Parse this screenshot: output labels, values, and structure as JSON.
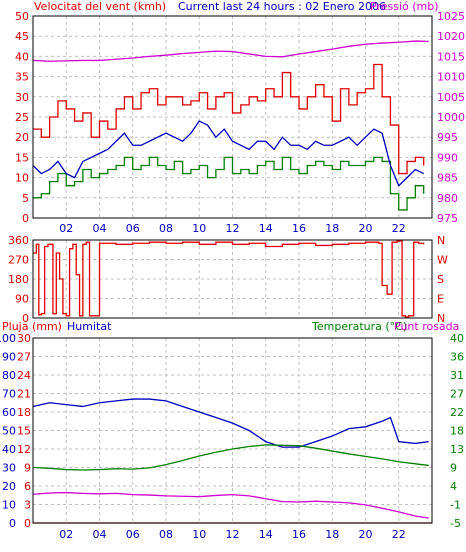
{
  "header": {
    "left_title": "Velocitat del vent (kmh)",
    "center_title": "Current last 24 hours : 02 Enero 2006",
    "right_title": "Pressió (mb)"
  },
  "bottom_header": {
    "left_label_1": "Pluja (mm)",
    "left_label_2": "Humitat",
    "right_label_1": "Temperatura (°C)",
    "right_label_2": "Punt rosada"
  },
  "colors": {
    "wind_gust": "#e00000",
    "wind_avg": "#008000",
    "wind_10min": "#0000c0",
    "pressure": "#d000d0",
    "direction": "#e00000",
    "rain": "#e00000",
    "humidity": "#0000c0",
    "temperature": "#008000",
    "dewpoint": "#d000d0",
    "grid": "#c0c0c0"
  },
  "chart_data": [
    {
      "type": "line",
      "id": "wind_pressure",
      "title": "Current last 24 hours : 02 Enero 2006",
      "x_tick_labels": [
        "02",
        "04",
        "06",
        "08",
        "10",
        "12",
        "14",
        "16",
        "18",
        "20",
        "22"
      ],
      "x_tick_hours": [
        2,
        4,
        6,
        8,
        10,
        12,
        14,
        16,
        18,
        20,
        22
      ],
      "xlim": [
        0,
        24
      ],
      "y_left": {
        "label": "Velocitat del vent (kmh)",
        "lim": [
          0,
          50
        ],
        "ticks": [
          0,
          5,
          10,
          15,
          20,
          25,
          30,
          35,
          40,
          45,
          50
        ]
      },
      "y_right": {
        "label": "Pressió (mb)",
        "lim": [
          975,
          1025
        ],
        "ticks": [
          975,
          980,
          985,
          990,
          995,
          1000,
          1005,
          1010,
          1015,
          1020,
          1025
        ]
      },
      "grid": true,
      "series": [
        {
          "axis": "left",
          "x": [
            0,
            0.5,
            1,
            1.5,
            2,
            2.5,
            3,
            3.5,
            4,
            4.5,
            5,
            5.5,
            6,
            6.5,
            7,
            7.5,
            8,
            8.5,
            9,
            9.5,
            10,
            10.5,
            11,
            11.5,
            12,
            12.5,
            13,
            13.5,
            14,
            14.5,
            15,
            15.5,
            16,
            16.5,
            17,
            17.5,
            18,
            18.5,
            19,
            19.5,
            20,
            20.5,
            21,
            21.5,
            22,
            22.5,
            23,
            23.5
          ],
          "values": [
            22,
            20,
            25,
            29,
            27,
            24,
            26,
            20,
            24,
            22,
            27,
            30,
            27,
            31,
            32,
            28,
            30,
            30,
            28,
            29,
            31,
            27,
            30,
            31,
            26,
            28,
            30,
            29,
            32,
            30,
            36,
            30,
            27,
            30,
            33,
            30,
            24,
            32,
            28,
            31,
            32,
            38,
            30,
            23,
            11,
            14,
            15,
            13
          ]
        },
        {
          "axis": "left",
          "x": [
            0,
            0.5,
            1,
            1.5,
            2,
            2.5,
            3,
            3.5,
            4,
            4.5,
            5,
            5.5,
            6,
            6.5,
            7,
            7.5,
            8,
            8.5,
            9,
            9.5,
            10,
            10.5,
            11,
            11.5,
            12,
            12.5,
            13,
            13.5,
            14,
            14.5,
            15,
            15.5,
            16,
            16.5,
            17,
            17.5,
            18,
            18.5,
            19,
            19.5,
            20,
            20.5,
            21,
            21.5,
            22,
            22.5,
            23,
            23.5
          ],
          "values": [
            5,
            6,
            9,
            11,
            8,
            9,
            12,
            10,
            11,
            12,
            13,
            15,
            12,
            13,
            15,
            13,
            12,
            14,
            11,
            12,
            13,
            10,
            12,
            15,
            11,
            12,
            11,
            13,
            14,
            12,
            15,
            12,
            11,
            13,
            14,
            13,
            12,
            14,
            13,
            13,
            14,
            15,
            14,
            6,
            2,
            5,
            8,
            6
          ]
        },
        {
          "axis": "left",
          "x": [
            0,
            0.5,
            1,
            1.5,
            2,
            2.5,
            3,
            3.5,
            4,
            4.5,
            5,
            5.5,
            6,
            6.5,
            7,
            7.5,
            8,
            8.5,
            9,
            9.5,
            10,
            10.5,
            11,
            11.5,
            12,
            12.5,
            13,
            13.5,
            14,
            14.5,
            15,
            15.5,
            16,
            16.5,
            17,
            17.5,
            18,
            18.5,
            19,
            19.5,
            20,
            20.5,
            21,
            21.5,
            22,
            22.5,
            23,
            23.5
          ],
          "values": [
            13,
            11,
            12,
            14,
            11,
            10,
            14,
            15,
            16,
            17,
            19,
            21,
            18,
            18,
            19,
            20,
            21,
            20,
            19,
            21,
            24,
            23,
            20,
            22,
            19,
            18,
            17,
            19,
            19,
            17,
            20,
            18,
            18,
            17,
            19,
            18,
            18,
            19,
            20,
            18,
            20,
            22,
            21,
            13,
            8,
            10,
            12,
            11
          ]
        },
        {
          "axis": "right",
          "x": [
            0,
            1,
            2,
            3,
            4,
            5,
            6,
            7,
            8,
            9,
            10,
            11,
            12,
            13,
            14,
            15,
            16,
            17,
            18,
            19,
            20,
            21,
            22,
            23,
            23.8
          ],
          "values": [
            1014,
            1013.8,
            1013.9,
            1014,
            1014,
            1014.3,
            1014.6,
            1015,
            1015.3,
            1015.7,
            1016,
            1016.3,
            1016.2,
            1015.6,
            1015,
            1014.9,
            1015.6,
            1016.2,
            1016.8,
            1017.5,
            1018,
            1018.3,
            1018.5,
            1018.8,
            1018.7
          ]
        }
      ]
    },
    {
      "type": "line",
      "id": "wind_direction",
      "x_tick_labels": [],
      "xlim": [
        0,
        24
      ],
      "y_left": {
        "lim": [
          0,
          360
        ],
        "ticks": [
          0,
          90,
          180,
          270,
          360
        ]
      },
      "y_right": {
        "ticks": [
          "N",
          "E",
          "S",
          "W",
          "N"
        ]
      },
      "grid": true,
      "series": [
        {
          "axis": "left",
          "x": [
            0,
            0.2,
            0.35,
            0.5,
            0.7,
            0.9,
            1.2,
            1.4,
            1.6,
            1.8,
            2.0,
            2.2,
            2.4,
            2.6,
            2.8,
            3.0,
            3.2,
            3.4,
            4,
            5,
            6,
            7,
            8,
            9,
            10,
            11,
            12,
            13,
            14,
            15,
            16,
            17,
            18,
            19,
            20,
            20.8,
            21.0,
            21.3,
            21.6,
            21.9,
            22.2,
            22.4,
            22.6,
            22.9,
            23.2,
            23.5
          ],
          "values": [
            300,
            340,
            15,
            20,
            330,
            340,
            20,
            300,
            180,
            20,
            10,
            320,
            340,
            200,
            10,
            340,
            350,
            10,
            345,
            340,
            345,
            350,
            345,
            350,
            340,
            350,
            340,
            345,
            330,
            340,
            345,
            335,
            340,
            345,
            350,
            345,
            150,
            110,
            350,
            355,
            10,
            5,
            10,
            350,
            345,
            340
          ]
        }
      ]
    },
    {
      "type": "line",
      "id": "rain_humidity_temp",
      "x_tick_labels": [
        "02",
        "04",
        "06",
        "08",
        "10",
        "12",
        "14",
        "16",
        "18",
        "20",
        "22"
      ],
      "x_tick_hours": [
        2,
        4,
        6,
        8,
        10,
        12,
        14,
        16,
        18,
        20,
        22
      ],
      "xlim": [
        0,
        24
      ],
      "y_left_humidity": {
        "label": "Humitat",
        "lim": [
          0,
          100
        ],
        "ticks": [
          0,
          10,
          20,
          30,
          40,
          50,
          60,
          70,
          80,
          90,
          100
        ]
      },
      "y_left_rain": {
        "label": "Pluja (mm)",
        "lim": [
          0,
          30
        ],
        "ticks": [
          0,
          3,
          6,
          9,
          12,
          15,
          18,
          21,
          24,
          27,
          30
        ]
      },
      "y_right": {
        "label": "Temperatura (°C)",
        "lim": [
          -5,
          40
        ],
        "ticks": [
          -5,
          -1,
          4,
          9,
          13,
          18,
          22,
          27,
          31,
          36,
          40
        ]
      },
      "grid": true,
      "series": [
        {
          "axis": "rain",
          "x": [
            0,
            24
          ],
          "values": [
            0,
            0
          ]
        },
        {
          "axis": "humidity",
          "x": [
            0,
            1,
            2,
            3,
            4,
            5,
            6,
            7,
            8,
            9,
            10,
            11,
            12,
            13,
            14,
            15,
            16,
            17,
            18,
            19,
            20,
            21,
            21.5,
            22,
            23,
            23.8
          ],
          "values": [
            63,
            65,
            64,
            63,
            65,
            66,
            67,
            67,
            66,
            63,
            60,
            57,
            54,
            50,
            44,
            41,
            41,
            44,
            47,
            51,
            52,
            55,
            57,
            44,
            43,
            44
          ]
        },
        {
          "axis": "temp",
          "x": [
            0,
            1,
            2,
            3,
            4,
            5,
            6,
            7,
            8,
            9,
            10,
            11,
            12,
            13,
            14,
            15,
            16,
            17,
            18,
            19,
            20,
            21,
            22,
            23,
            23.8
          ],
          "values": [
            8.5,
            8.3,
            8.0,
            7.9,
            8.0,
            8.2,
            8.1,
            8.4,
            9.2,
            10.2,
            11.3,
            12.2,
            13.0,
            13.6,
            14.0,
            13.9,
            13.8,
            13.2,
            12.5,
            11.8,
            11.2,
            10.6,
            9.9,
            9.4,
            9.0
          ]
        },
        {
          "axis": "temp",
          "x": [
            0,
            1,
            2,
            3,
            4,
            5,
            6,
            7,
            8,
            9,
            10,
            11,
            12,
            13,
            14,
            15,
            16,
            17,
            18,
            19,
            20,
            21,
            22,
            23,
            23.8
          ],
          "values": [
            2.0,
            2.3,
            2.4,
            2.2,
            2.1,
            2.2,
            1.9,
            1.8,
            1.6,
            1.5,
            1.4,
            1.7,
            1.9,
            1.6,
            0.9,
            0.2,
            0.1,
            0.3,
            0.1,
            -0.1,
            -0.6,
            -1.4,
            -2.3,
            -3.3,
            -3.8
          ]
        }
      ]
    }
  ]
}
